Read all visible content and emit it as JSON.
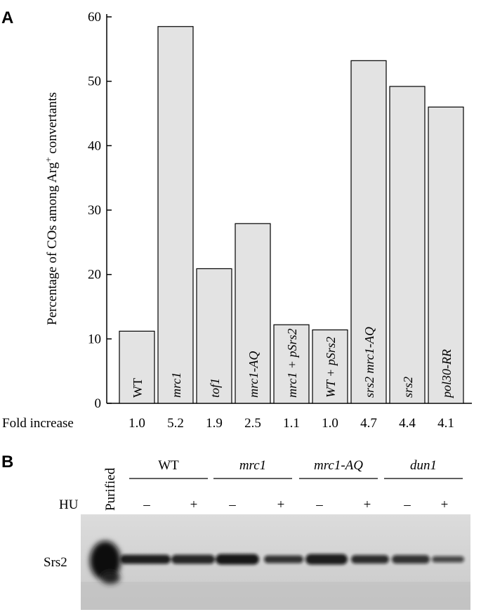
{
  "panel_a": {
    "letter": "A",
    "fold_increase_label": "Fold increase",
    "fold_values": [
      "1.0",
      "5.2",
      "1.9",
      "2.5",
      "1.1",
      "1.0",
      "4.7",
      "4.4",
      "4.1"
    ]
  },
  "panel_b": {
    "letter": "B",
    "purified_label": "Purified",
    "hu_label": "HU",
    "srs2_label": "Srs2",
    "groups": [
      {
        "name": "WT",
        "italic": false
      },
      {
        "name": "mrc1",
        "italic": true
      },
      {
        "name": "mrc1-AQ",
        "italic": true
      },
      {
        "name": "dun1",
        "italic": true
      }
    ],
    "hu_signs": [
      "–",
      "+",
      "–",
      "+",
      "–",
      "+",
      "–",
      "+"
    ]
  },
  "chart_data": {
    "type": "bar",
    "categories": [
      "WT",
      "mrc1",
      "tof1",
      "mrc1-AQ",
      "mrc1 + pSrs2",
      "WT + pSrs2",
      "srs2 mrc1-AQ",
      "srs2",
      "pol30-RR"
    ],
    "values": [
      11.2,
      58.5,
      20.9,
      27.9,
      12.2,
      11.4,
      53.2,
      49.2,
      46.0
    ],
    "ylabel_prefix": "Percentage of COs among Arg",
    "ylabel_sup": "+",
    "ylabel_suffix": " convertants",
    "ylim": [
      0,
      60
    ],
    "yticks": [
      0,
      10,
      20,
      30,
      40,
      50,
      60
    ],
    "grid": false,
    "bar_color": "#e3e3e3"
  }
}
